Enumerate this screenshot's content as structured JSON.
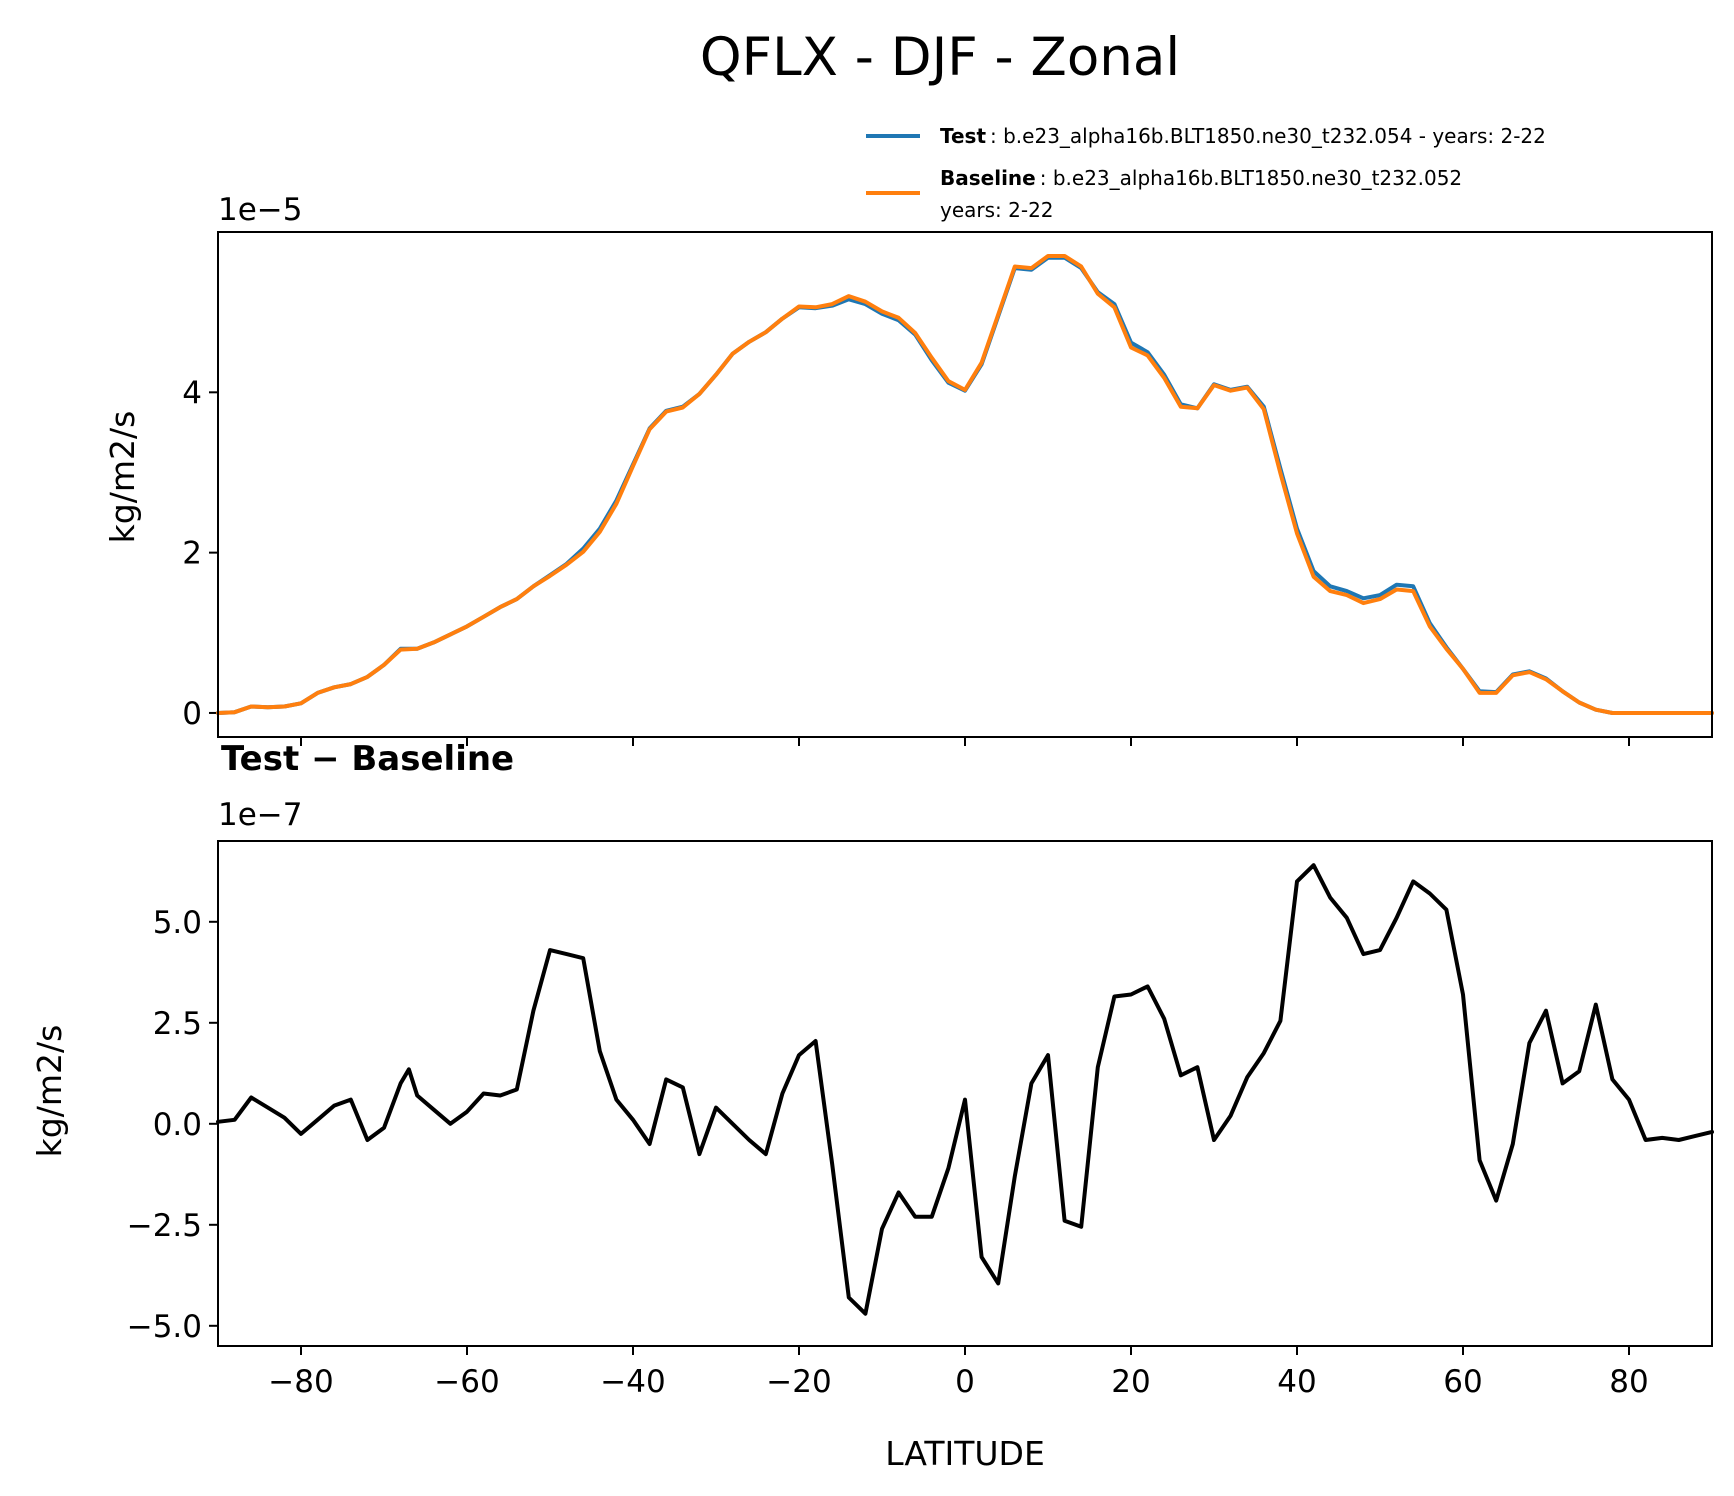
{
  "chart_data": {
    "type": "line",
    "title": "QFLX - DJF - Zonal",
    "xlabel": "LATITUDE",
    "xlim": [
      -90,
      90
    ],
    "xticks": [
      -80,
      -60,
      -40,
      -20,
      0,
      20,
      40,
      60,
      80
    ],
    "xtick_labels": [
      "−80",
      "−60",
      "−40",
      "−20",
      "0",
      "20",
      "40",
      "60",
      "80"
    ],
    "panels": [
      {
        "name": "top",
        "ylabel": "kg/m2/s",
        "offset_text": "1e−5",
        "ylim": [
          -0.3,
          6.0
        ],
        "yticks": [
          0,
          2,
          4
        ],
        "ytick_labels": [
          "0",
          "2",
          "4"
        ],
        "legend": {
          "position": "above-right",
          "entries": [
            {
              "name": "Test",
              "text": ": b.e23_alpha16b.BLT1850.ne30_t232.054 - years: 2-22",
              "color": "#1f77b4"
            },
            {
              "name": "Baseline",
              "text": ": b.e23_alpha16b.BLT1850.ne30_t232.052",
              "text2": "years: 2-22",
              "color": "#ff7f0e"
            }
          ]
        },
        "series": [
          {
            "name": "Test",
            "color": "#1f77b4",
            "x": [
              -90,
              -88,
              -86,
              -84,
              -82,
              -80,
              -78,
              -76,
              -74,
              -72,
              -70,
              -68,
              -66,
              -64,
              -62,
              -60,
              -58,
              -56,
              -54,
              -52,
              -50,
              -48,
              -46,
              -44,
              -42,
              -40,
              -38,
              -36,
              -34,
              -32,
              -30,
              -28,
              -26,
              -24,
              -22,
              -20,
              -18,
              -16,
              -14,
              -12,
              -10,
              -8,
              -6,
              -4,
              -2,
              0,
              2,
              4,
              6,
              8,
              10,
              12,
              14,
              16,
              18,
              20,
              22,
              24,
              26,
              28,
              30,
              32,
              34,
              36,
              38,
              40,
              42,
              44,
              46,
              48,
              50,
              52,
              54,
              56,
              58,
              60,
              62,
              64,
              66,
              68,
              70,
              72,
              74,
              76,
              78,
              80,
              82,
              84,
              86,
              88,
              90
            ],
            "values": [
              0.0,
              0.01,
              0.08,
              0.07,
              0.08,
              0.12,
              0.25,
              0.32,
              0.36,
              0.45,
              0.6,
              0.8,
              0.8,
              0.88,
              0.98,
              1.08,
              1.2,
              1.32,
              1.42,
              1.58,
              1.72,
              1.86,
              2.05,
              2.3,
              2.65,
              3.1,
              3.55,
              3.77,
              3.82,
              3.98,
              4.22,
              4.48,
              4.63,
              4.75,
              4.92,
              5.06,
              5.05,
              5.08,
              5.16,
              5.1,
              4.98,
              4.9,
              4.72,
              4.4,
              4.12,
              4.02,
              4.35,
              4.95,
              5.55,
              5.53,
              5.68,
              5.68,
              5.55,
              5.25,
              5.1,
              4.62,
              4.5,
              4.22,
              3.85,
              3.8,
              4.1,
              4.03,
              4.07,
              3.82,
              3.05,
              2.3,
              1.77,
              1.58,
              1.52,
              1.43,
              1.47,
              1.6,
              1.58,
              1.12,
              0.82,
              0.55,
              0.27,
              0.26,
              0.48,
              0.52,
              0.43,
              0.27,
              0.13,
              0.04,
              0.0,
              0.0,
              0.0,
              0.0,
              0.0,
              0.0,
              0.0
            ]
          },
          {
            "name": "Baseline",
            "color": "#ff7f0e",
            "x": [
              -90,
              -88,
              -86,
              -84,
              -82,
              -80,
              -78,
              -76,
              -74,
              -72,
              -70,
              -68,
              -66,
              -64,
              -62,
              -60,
              -58,
              -56,
              -54,
              -52,
              -50,
              -48,
              -46,
              -44,
              -42,
              -40,
              -38,
              -36,
              -34,
              -32,
              -30,
              -28,
              -26,
              -24,
              -22,
              -20,
              -18,
              -16,
              -14,
              -12,
              -10,
              -8,
              -6,
              -4,
              -2,
              0,
              2,
              4,
              6,
              8,
              10,
              12,
              14,
              16,
              18,
              20,
              22,
              24,
              26,
              28,
              30,
              32,
              34,
              36,
              38,
              40,
              42,
              44,
              46,
              48,
              50,
              52,
              54,
              56,
              58,
              60,
              62,
              64,
              66,
              68,
              70,
              72,
              74,
              76,
              78,
              80,
              82,
              84,
              86,
              88,
              90
            ],
            "values": [
              0.0,
              0.01,
              0.08,
              0.07,
              0.08,
              0.12,
              0.25,
              0.32,
              0.36,
              0.45,
              0.6,
              0.79,
              0.8,
              0.88,
              0.98,
              1.08,
              1.2,
              1.32,
              1.42,
              1.58,
              1.71,
              1.85,
              2.01,
              2.26,
              2.61,
              3.08,
              3.54,
              3.76,
              3.81,
              3.98,
              4.22,
              4.48,
              4.63,
              4.75,
              4.92,
              5.07,
              5.06,
              5.1,
              5.2,
              5.13,
              5.01,
              4.93,
              4.74,
              4.43,
              4.14,
              4.03,
              4.37,
              4.97,
              5.57,
              5.55,
              5.7,
              5.7,
              5.57,
              5.23,
              5.06,
              4.56,
              4.46,
              4.18,
              3.82,
              3.8,
              4.09,
              4.02,
              4.06,
              3.79,
              2.99,
              2.24,
              1.7,
              1.52,
              1.47,
              1.37,
              1.42,
              1.54,
              1.52,
              1.08,
              0.8,
              0.55,
              0.25,
              0.25,
              0.47,
              0.51,
              0.42,
              0.27,
              0.13,
              0.04,
              0.0,
              0.0,
              0.0,
              0.0,
              0.0,
              0.0,
              0.0
            ]
          }
        ]
      },
      {
        "name": "bottom",
        "subtitle": "Test − Baseline",
        "ylabel": "kg/m2/s",
        "offset_text": "1e−7",
        "ylim": [
          -5.5,
          7.0
        ],
        "yticks": [
          -5.0,
          -2.5,
          0.0,
          2.5,
          5.0
        ],
        "ytick_labels": [
          "−5.0",
          "−2.5",
          "0.0",
          "2.5",
          "5.0"
        ],
        "series": [
          {
            "name": "Test − Baseline",
            "color": "#000000",
            "x": [
              -90,
              -88,
              -86,
              -84,
              -82,
              -80,
              -78,
              -76,
              -74,
              -72,
              -70,
              -68,
              -67,
              -66,
              -64,
              -62,
              -60,
              -58,
              -56,
              -54,
              -52,
              -50,
              -48,
              -46,
              -44,
              -42,
              -40,
              -38,
              -36,
              -34,
              -32,
              -30,
              -28,
              -26,
              -24,
              -22,
              -20,
              -18,
              -16,
              -14,
              -12,
              -10,
              -8,
              -6,
              -4,
              -2,
              0,
              2,
              4,
              6,
              8,
              10,
              12,
              14,
              16,
              18,
              20,
              22,
              24,
              26,
              28,
              30,
              32,
              34,
              36,
              38,
              40,
              42,
              44,
              46,
              48,
              50,
              52,
              54,
              56,
              58,
              60,
              62,
              64,
              66,
              68,
              70,
              72,
              74,
              76,
              78,
              80,
              82,
              84,
              86,
              88,
              90
            ],
            "values": [
              0.05,
              0.1,
              0.65,
              0.4,
              0.15,
              -0.25,
              0.1,
              0.45,
              0.6,
              -0.4,
              -0.1,
              1.0,
              1.35,
              0.7,
              0.35,
              0.0,
              0.3,
              0.75,
              0.7,
              0.85,
              2.8,
              4.3,
              4.2,
              4.1,
              1.8,
              0.6,
              0.1,
              -0.5,
              1.1,
              0.9,
              -0.75,
              0.4,
              0.0,
              -0.4,
              -0.75,
              0.75,
              1.7,
              2.05,
              -1.0,
              -4.3,
              -4.7,
              -2.6,
              -1.7,
              -2.3,
              -2.3,
              -1.1,
              0.6,
              -3.3,
              -3.95,
              -1.3,
              1.0,
              1.7,
              -2.4,
              -2.55,
              1.4,
              3.15,
              3.2,
              3.4,
              2.6,
              1.2,
              1.4,
              -0.4,
              0.2,
              1.15,
              1.75,
              2.55,
              6.0,
              6.4,
              5.6,
              5.1,
              4.2,
              4.3,
              5.1,
              6.0,
              5.7,
              5.3,
              3.2,
              -0.9,
              -1.9,
              -0.5,
              2.0,
              2.8,
              1.0,
              1.3,
              2.95,
              1.1,
              0.6,
              -0.4,
              -0.35,
              -0.4,
              -0.3,
              -0.2
            ]
          }
        ]
      }
    ]
  }
}
